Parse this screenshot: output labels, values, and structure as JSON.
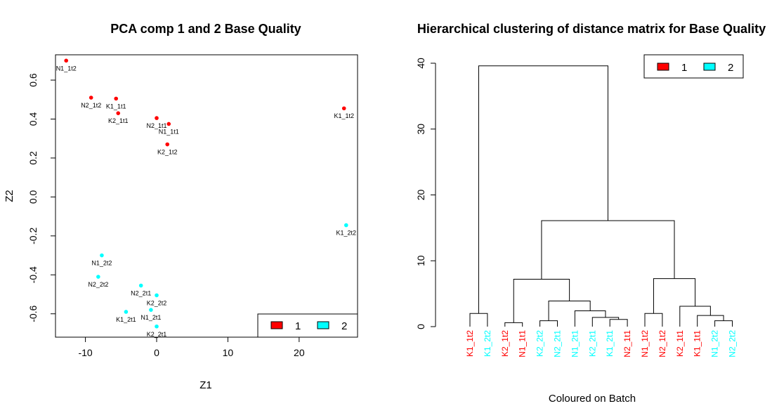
{
  "chart_data": [
    {
      "type": "scatter",
      "title": "PCA comp 1 and 2 Base Quality",
      "xlabel": "Z1",
      "ylabel": "Z2",
      "xlim": [
        -14.2,
        28.2
      ],
      "ylim": [
        -0.72,
        0.73
      ],
      "x_ticks": [
        -10,
        0,
        10,
        20
      ],
      "y_ticks": [
        -0.6,
        -0.4,
        -0.2,
        0.0,
        0.2,
        0.4,
        0.6
      ],
      "x_tick_labels": [
        "-10",
        "0",
        "10",
        "20"
      ],
      "y_tick_labels": [
        "-0.6",
        "-0.4",
        "-0.2",
        "0.0",
        "0.2",
        "0.4",
        "0.6"
      ],
      "legend": {
        "position": "bottom-right",
        "entries": [
          {
            "label": "1",
            "color": "#ff0000"
          },
          {
            "label": "2",
            "color": "#00ffff"
          }
        ]
      },
      "series": [
        {
          "name": "1",
          "color": "#ff0000",
          "points": [
            {
              "label": "N1_1t2",
              "x": -12.7,
              "y": 0.7
            },
            {
              "label": "N2_1t2",
              "x": -9.2,
              "y": 0.51
            },
            {
              "label": "K1_1t1",
              "x": -5.7,
              "y": 0.505
            },
            {
              "label": "K2_1t1",
              "x": -5.4,
              "y": 0.43
            },
            {
              "label": "N2_1t1",
              "x": 0.0,
              "y": 0.405
            },
            {
              "label": "N1_1t1",
              "x": 1.7,
              "y": 0.375
            },
            {
              "label": "K2_1t2",
              "x": 1.5,
              "y": 0.27
            },
            {
              "label": "K1_1t2",
              "x": 26.3,
              "y": 0.455
            }
          ]
        },
        {
          "name": "2",
          "color": "#00ffff",
          "points": [
            {
              "label": "K1_2t2",
              "x": 26.6,
              "y": -0.145
            },
            {
              "label": "N1_2t2",
              "x": -7.7,
              "y": -0.3
            },
            {
              "label": "N2_2t2",
              "x": -8.2,
              "y": -0.41
            },
            {
              "label": "N2_2t1",
              "x": -2.2,
              "y": -0.455
            },
            {
              "label": "K2_2t2",
              "x": 0.0,
              "y": -0.505
            },
            {
              "label": "N1_2t1",
              "x": -0.8,
              "y": -0.58
            },
            {
              "label": "K1_2t1",
              "x": -4.3,
              "y": -0.59
            },
            {
              "label": "K2_2t1",
              "x": 0.0,
              "y": -0.665
            }
          ]
        }
      ]
    },
    {
      "type": "dendrogram",
      "title": "Hierarchical clustering of distance matrix for Base Quality",
      "xlabel": "Coloured on Batch",
      "ylabel": "",
      "ylim": [
        0,
        40
      ],
      "y_ticks": [
        0,
        10,
        20,
        30,
        40
      ],
      "y_tick_labels": [
        "0",
        "10",
        "20",
        "30",
        "40"
      ],
      "legend": {
        "position": "top-right",
        "entries": [
          {
            "label": "1",
            "color": "#ff0000"
          },
          {
            "label": "2",
            "color": "#00ffff"
          }
        ]
      },
      "leaves": [
        {
          "label": "K1_1t2",
          "color": "#ff0000"
        },
        {
          "label": "K1_2t2",
          "color": "#00ffff"
        },
        {
          "label": "K2_1t2",
          "color": "#ff0000"
        },
        {
          "label": "N1_1t1",
          "color": "#ff0000"
        },
        {
          "label": "K2_2t2",
          "color": "#00ffff"
        },
        {
          "label": "N2_2t1",
          "color": "#00ffff"
        },
        {
          "label": "N1_2t1",
          "color": "#00ffff"
        },
        {
          "label": "K2_2t1",
          "color": "#00ffff"
        },
        {
          "label": "K1_2t1",
          "color": "#00ffff"
        },
        {
          "label": "N2_1t1",
          "color": "#ff0000"
        },
        {
          "label": "N1_1t2",
          "color": "#ff0000"
        },
        {
          "label": "N2_1t2",
          "color": "#ff0000"
        },
        {
          "label": "K2_1t1",
          "color": "#ff0000"
        },
        {
          "label": "K1_1t1",
          "color": "#ff0000"
        },
        {
          "label": "N1_2t2",
          "color": "#00ffff"
        },
        {
          "label": "N2_2t2",
          "color": "#00ffff"
        }
      ],
      "merges": [
        {
          "left": 0,
          "right": 1,
          "height": 2.0
        },
        {
          "left": 2,
          "right": 3,
          "height": 0.6
        },
        {
          "left": 4,
          "right": 5,
          "height": 0.9
        },
        {
          "left": 8,
          "right": 9,
          "height": 1.1
        },
        {
          "left": 7,
          "right": -4,
          "height": 1.4
        },
        {
          "left": 6,
          "right": -5,
          "height": 2.4
        },
        {
          "left": -3,
          "right": -6,
          "height": 3.9
        },
        {
          "left": -2,
          "right": -7,
          "height": 7.2
        },
        {
          "left": 10,
          "right": 11,
          "height": 2.0
        },
        {
          "left": 14,
          "right": 15,
          "height": 0.9
        },
        {
          "left": 13,
          "right": -10,
          "height": 1.7
        },
        {
          "left": 12,
          "right": -11,
          "height": 3.1
        },
        {
          "left": -9,
          "right": -12,
          "height": 7.3
        },
        {
          "left": -8,
          "right": -13,
          "height": 16.1
        },
        {
          "left": -1,
          "right": -14,
          "height": 39.6
        }
      ]
    }
  ]
}
